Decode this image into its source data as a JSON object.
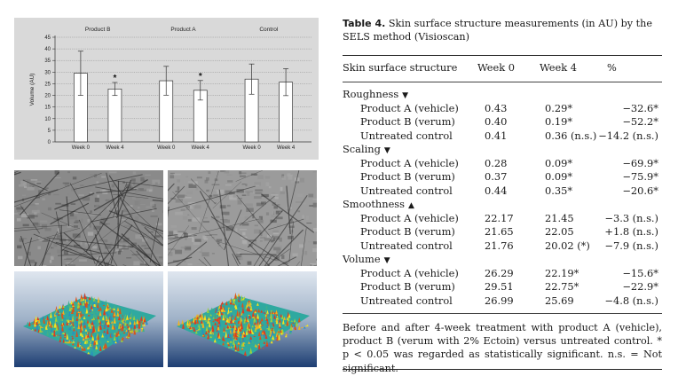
{
  "chart_data": {
    "type": "bar",
    "title": "",
    "ylabel": "Volume (AU)",
    "xlabel": "",
    "ylim": [
      0,
      45
    ],
    "yticks": [
      0,
      5,
      10,
      15,
      20,
      25,
      30,
      35,
      40,
      45
    ],
    "grid": true,
    "groups": [
      {
        "name": "Product B",
        "bars": [
          {
            "label": "Week 0",
            "value": 29.51,
            "error": 9.5,
            "sig": ""
          },
          {
            "label": "Week 4",
            "value": 22.75,
            "error": 2.8,
            "sig": "*"
          }
        ]
      },
      {
        "name": "Product A",
        "bars": [
          {
            "label": "Week 0",
            "value": 26.29,
            "error": 6.2,
            "sig": ""
          },
          {
            "label": "Week 4",
            "value": 22.19,
            "error": 4.2,
            "sig": "*"
          }
        ]
      },
      {
        "name": "Control",
        "bars": [
          {
            "label": "Week 0",
            "value": 26.99,
            "error": 6.5,
            "sig": ""
          },
          {
            "label": "Week 4",
            "value": 25.69,
            "error": 5.8,
            "sig": ""
          }
        ]
      }
    ]
  },
  "images": {
    "microscopy": [
      "skin-surface-visioscan-week0",
      "skin-surface-visioscan-week4"
    ],
    "surface_3d": [
      "skin-surface-3d-week0",
      "skin-surface-3d-week4"
    ]
  },
  "table": {
    "caption_label": "Table 4.",
    "caption_text": " Skin surface structure measurements (in AU) by the SELS method (Visioscan)",
    "headers": {
      "structure": "Skin surface structure",
      "week0": "Week 0",
      "week4": "Week 4",
      "pct": "%"
    },
    "sections": [
      {
        "label": "Roughness",
        "arrow": "▼",
        "rows": [
          {
            "label": "Product A (vehicle)",
            "w0": "0.43",
            "w4": "0.29*",
            "pct": "−32.6*"
          },
          {
            "label": "Product B (verum)",
            "w0": "0.40",
            "w4": "0.19*",
            "pct": "−52.2*"
          },
          {
            "label": "Untreated control",
            "w0": "0.41",
            "w4": "0.36 (n.s.)",
            "pct": "−14.2 (n.s.)"
          }
        ]
      },
      {
        "label": "Scaling",
        "arrow": "▼",
        "rows": [
          {
            "label": "Product A (vehicle)",
            "w0": "0.28",
            "w4": "0.09*",
            "pct": "−69.9*"
          },
          {
            "label": "Product B (verum)",
            "w0": "0.37",
            "w4": "0.09*",
            "pct": "−75.9*"
          },
          {
            "label": "Untreated control",
            "w0": "0.44",
            "w4": "0.35*",
            "pct": "−20.6*"
          }
        ]
      },
      {
        "label": "Smoothness",
        "arrow": "▲",
        "rows": [
          {
            "label": "Product A (vehicle)",
            "w0": "22.17",
            "w4": "21.45",
            "pct": "−3.3 (n.s.)"
          },
          {
            "label": "Product B (verum)",
            "w0": "21.65",
            "w4": "22.05",
            "pct": "+1.8 (n.s.)"
          },
          {
            "label": "Untreated control",
            "w0": "21.76",
            "w4": "20.02 (*)",
            "pct": "−7.9 (n.s.)"
          }
        ]
      },
      {
        "label": "Volume",
        "arrow": "▼",
        "rows": [
          {
            "label": "Product A (vehicle)",
            "w0": "26.29",
            "w4": "22.19*",
            "pct": "−15.6*"
          },
          {
            "label": "Product B (verum)",
            "w0": "29.51",
            "w4": "22.75*",
            "pct": "−22.9*"
          },
          {
            "label": "Untreated control",
            "w0": "26.99",
            "w4": "25.69",
            "pct": "−4.8 (n.s.)"
          }
        ]
      }
    ],
    "note": "Before and after 4-week treatment with product A (vehicle), product B (verum with 2% Ectoin) versus untreated control. * p < 0.05 was regarded as statistically significant. n.s. = Not significant."
  }
}
